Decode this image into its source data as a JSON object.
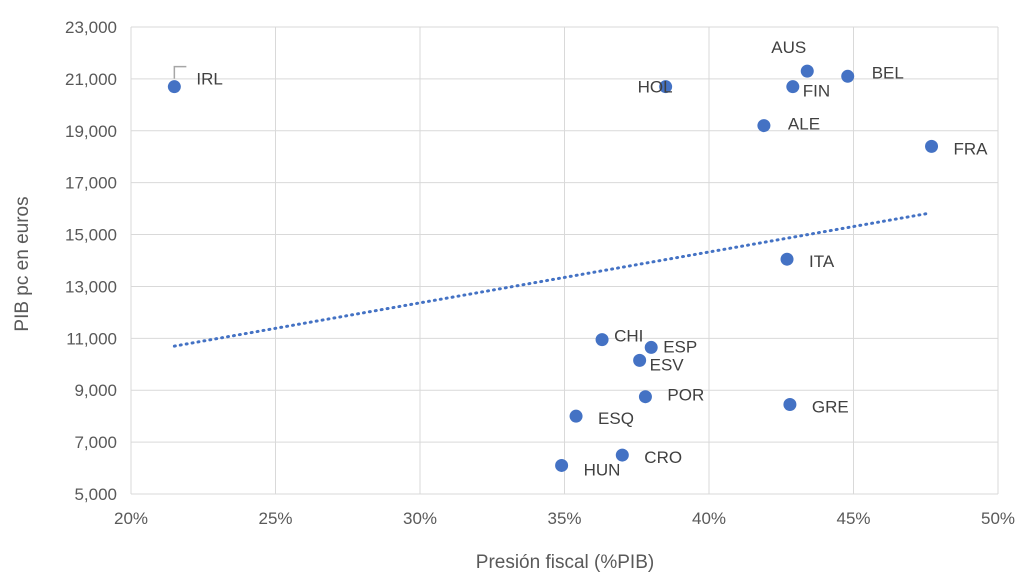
{
  "chart_data": {
    "type": "scatter",
    "title": "",
    "xlabel": "Presión fiscal (%PIB)",
    "ylabel": "PIB pc en euros",
    "xlim": [
      20,
      50
    ],
    "ylim": [
      5000,
      23000
    ],
    "x_ticks": [
      "20%",
      "25%",
      "30%",
      "35%",
      "40%",
      "45%",
      "50%"
    ],
    "y_ticks": [
      "5,000",
      "7,000",
      "9,000",
      "11,000",
      "13,000",
      "15,000",
      "17,000",
      "19,000",
      "21,000",
      "23,000"
    ],
    "grid": true,
    "marker_color": "#4472c4",
    "trendline": {
      "type": "linear",
      "style": "dotted",
      "color": "#4472c4",
      "x": [
        21.5,
        47.5
      ],
      "y": [
        10700,
        15800
      ]
    },
    "points": [
      {
        "label": "IRL",
        "x": 21.5,
        "y": 20700
      },
      {
        "label": "HOL",
        "x": 38.5,
        "y": 20700
      },
      {
        "label": "AUS",
        "x": 43.4,
        "y": 21300
      },
      {
        "label": "BEL",
        "x": 44.8,
        "y": 21100
      },
      {
        "label": "FIN",
        "x": 42.9,
        "y": 20700
      },
      {
        "label": "ALE",
        "x": 41.9,
        "y": 19200
      },
      {
        "label": "FRA",
        "x": 47.7,
        "y": 18400
      },
      {
        "label": "ITA",
        "x": 42.7,
        "y": 14050
      },
      {
        "label": "CHI",
        "x": 36.3,
        "y": 10950
      },
      {
        "label": "ESP",
        "x": 38.0,
        "y": 10650
      },
      {
        "label": "ESV",
        "x": 37.6,
        "y": 10150
      },
      {
        "label": "POR",
        "x": 37.8,
        "y": 8750
      },
      {
        "label": "GRE",
        "x": 42.8,
        "y": 8450
      },
      {
        "label": "ESQ",
        "x": 35.4,
        "y": 8000
      },
      {
        "label": "CRO",
        "x": 37.0,
        "y": 6500
      },
      {
        "label": "HUN",
        "x": 34.9,
        "y": 6100
      }
    ]
  }
}
